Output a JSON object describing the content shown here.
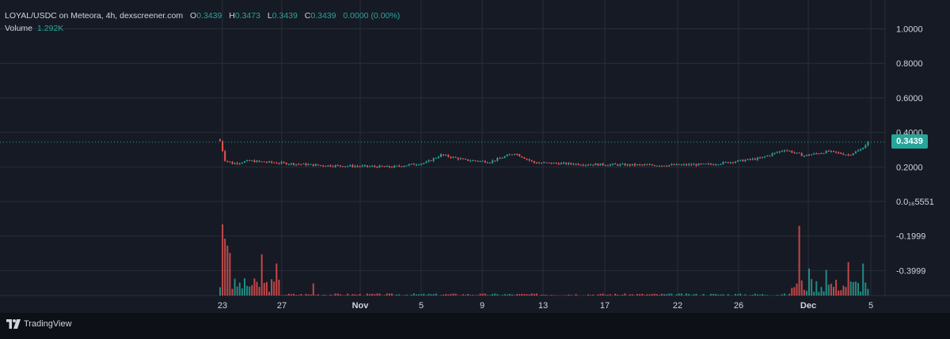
{
  "legend": {
    "pair": "LOYAL/USDC on Meteora, 4h, dexscreener.com",
    "o_label": "O",
    "o_value": "0.3439",
    "h_label": "H",
    "h_value": "0.3473",
    "l_label": "L",
    "l_value": "0.3439",
    "c_label": "C",
    "c_value": "0.3439",
    "change": "0.0000 (0.00%)",
    "volume_label": "Volume",
    "volume_value": "1.292K"
  },
  "last_price_badge": "0.3439",
  "brand": "TradingView",
  "colors": {
    "up": "#26a69a",
    "down": "#ef5350",
    "bg": "#161a25",
    "grid": "#2a2e39",
    "text": "#d1d4dc"
  },
  "chart_data": {
    "type": "candlestick",
    "y_axis_labels": [
      "1.0000",
      "0.8000",
      "0.6000",
      "0.4000",
      "0.2000",
      "0.0₁₆5551",
      "-0.1999",
      "-0.3999"
    ],
    "y_axis_values": [
      1.0,
      0.8,
      0.6,
      0.4,
      0.2,
      0.0,
      -0.2,
      -0.4
    ],
    "x_axis_labels": [
      "23",
      "27",
      "Nov",
      "5",
      "9",
      "13",
      "17",
      "22",
      "26",
      "Dec",
      "5"
    ],
    "close_anchors": [
      {
        "t": 0,
        "v": 0.35
      },
      {
        "t": 2,
        "v": 0.24
      },
      {
        "t": 5,
        "v": 0.22
      },
      {
        "t": 12,
        "v": 0.235
      },
      {
        "t": 22,
        "v": 0.225
      },
      {
        "t": 40,
        "v": 0.21
      },
      {
        "t": 70,
        "v": 0.2
      },
      {
        "t": 84,
        "v": 0.225
      },
      {
        "t": 90,
        "v": 0.27
      },
      {
        "t": 100,
        "v": 0.24
      },
      {
        "t": 110,
        "v": 0.23
      },
      {
        "t": 120,
        "v": 0.28
      },
      {
        "t": 128,
        "v": 0.225
      },
      {
        "t": 150,
        "v": 0.215
      },
      {
        "t": 180,
        "v": 0.21
      },
      {
        "t": 200,
        "v": 0.215
      },
      {
        "t": 220,
        "v": 0.25
      },
      {
        "t": 230,
        "v": 0.3
      },
      {
        "t": 238,
        "v": 0.265
      },
      {
        "t": 248,
        "v": 0.29
      },
      {
        "t": 256,
        "v": 0.27
      },
      {
        "t": 261,
        "v": 0.3
      },
      {
        "t": 264,
        "v": 0.3439
      }
    ],
    "volume_spikes": [
      {
        "t": 1,
        "v": 1.0
      },
      {
        "t": 2,
        "v": 0.8
      },
      {
        "t": 3,
        "v": 0.7
      },
      {
        "t": 4,
        "v": 0.6
      },
      {
        "t": 17,
        "v": 0.58
      },
      {
        "t": 23,
        "v": 0.45
      },
      {
        "t": 38,
        "v": 0.17
      },
      {
        "t": 236,
        "v": 0.98
      },
      {
        "t": 240,
        "v": 0.38
      },
      {
        "t": 247,
        "v": 0.36
      },
      {
        "t": 256,
        "v": 0.47
      },
      {
        "t": 262,
        "v": 0.45
      }
    ],
    "last_price": 0.3439
  }
}
